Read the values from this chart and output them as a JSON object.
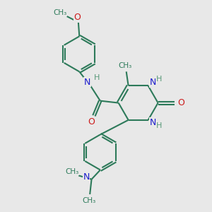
{
  "bg_color": "#e8e8e8",
  "bond_color": "#2d7a5a",
  "bond_width": 1.5,
  "atom_colors": {
    "C": "#2d7a5a",
    "N": "#1a1acc",
    "O": "#cc1a1a",
    "H": "#5a9a7a"
  },
  "xlim": [
    0,
    10
  ],
  "ylim": [
    0,
    10
  ]
}
